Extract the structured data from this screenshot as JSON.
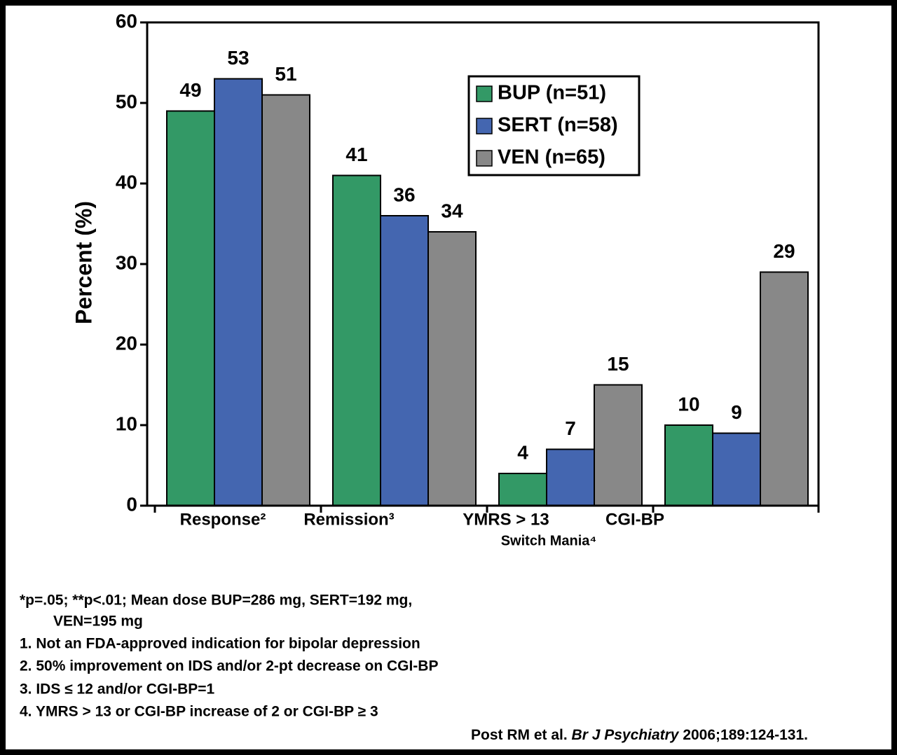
{
  "chart_data": {
    "type": "bar",
    "categories": [
      "Response²",
      "Remission³",
      "YMRS > 13",
      "CGI-BP"
    ],
    "group_label": "Switch Mania⁴",
    "y_label": "Percent (%)",
    "ylim": [
      0,
      60
    ],
    "yticks": [
      0,
      10,
      20,
      30,
      40,
      50,
      60
    ],
    "series": [
      {
        "name": "BUP (n=51)",
        "color": "#339966",
        "values": [
          49,
          41,
          4,
          10
        ]
      },
      {
        "name": "SERT (n=58)",
        "color": "#4466b0",
        "values": [
          53,
          36,
          7,
          9
        ]
      },
      {
        "name": "VEN (n=65)",
        "color": "#888888",
        "values": [
          51,
          34,
          15,
          29
        ]
      }
    ]
  },
  "footnotes": [
    "*p=.05; **p<.01; Mean dose BUP=286 mg, SERT=192 mg,",
    "VEN=195 mg",
    "1. Not an FDA-approved indication for bipolar depression",
    "2. 50% improvement on IDS and/or 2-pt decrease on CGI-BP",
    "3. IDS ≤ 12 and/or CGI-BP=1",
    "4. YMRS > 13 or CGI-BP increase of 2 or CGI-BP ≥ 3"
  ],
  "citation": {
    "authors": "Post RM et al.",
    "journal": "Br J Psychiatry",
    "details": "2006;189:124-131."
  }
}
